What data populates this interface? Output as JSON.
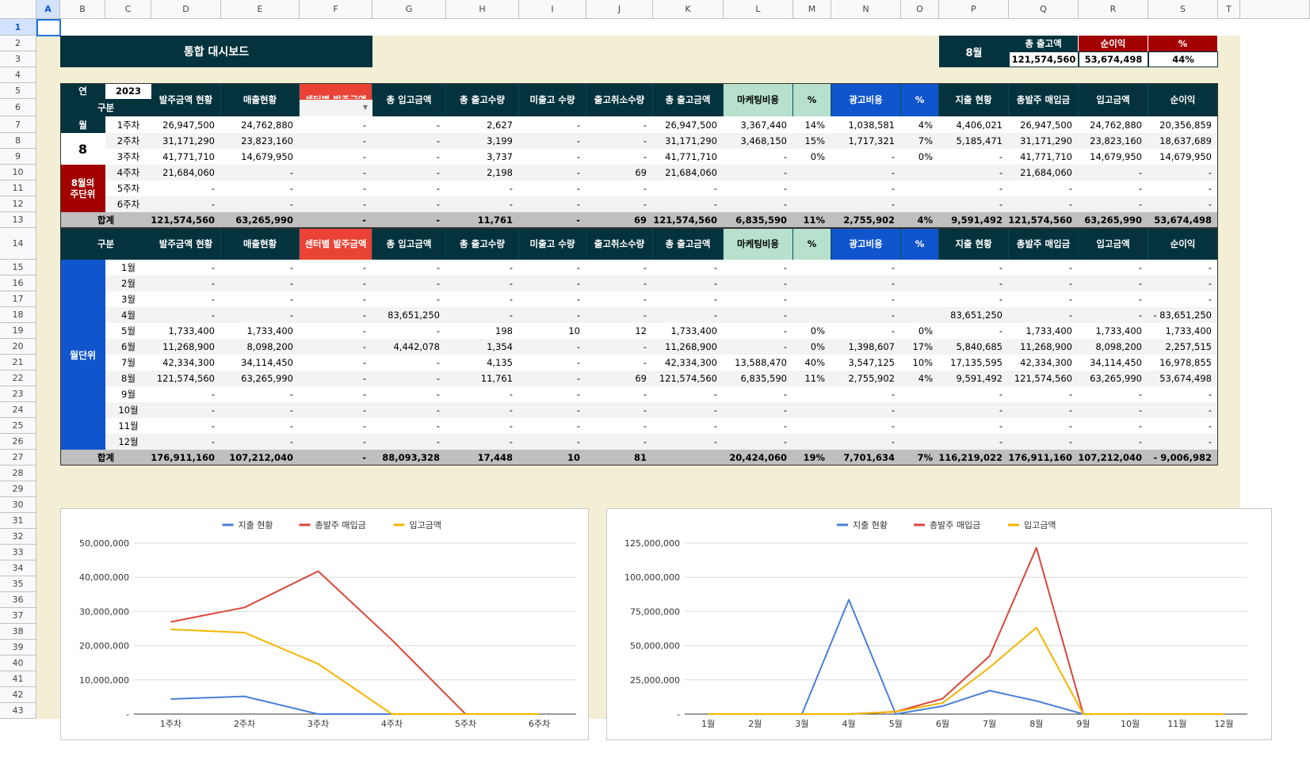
{
  "columns": [
    "A",
    "B",
    "C",
    "D",
    "E",
    "F",
    "G",
    "H",
    "I",
    "J",
    "K",
    "L",
    "M",
    "N",
    "O",
    "P",
    "Q",
    "R",
    "S",
    "T"
  ],
  "rows": [
    "1",
    "2",
    "3",
    "4",
    "5",
    "6",
    "7",
    "8",
    "9",
    "10",
    "11",
    "12",
    "13",
    "14",
    "15",
    "16",
    "17",
    "18",
    "19",
    "20",
    "21",
    "22",
    "23",
    "24",
    "25",
    "26",
    "27",
    "28",
    "29",
    "30",
    "31",
    "32",
    "33",
    "34",
    "35",
    "36",
    "37",
    "38",
    "39",
    "40",
    "41",
    "42",
    "43"
  ],
  "title": "통합 대시보드",
  "summary": {
    "month": "8월",
    "headers": [
      "총 출고액",
      "순이익",
      "%"
    ],
    "values": [
      "121,574,560",
      "53,674,498",
      "44%"
    ]
  },
  "weekly": {
    "year_label": "연",
    "year_value": "2023",
    "gubun_label": "구분",
    "month_label": "월",
    "month_value": "8",
    "side_label": "8월의\n주단위",
    "total_label": "합계",
    "headers": [
      "발주금액 현황",
      "매출현황",
      "센터별 발주금액",
      "총 입고금액",
      "총 출고수량",
      "미출고 수량",
      "출고취소수량",
      "총 출고금액",
      "마케팅비용",
      "%",
      "광고비용",
      "%",
      "지출 현황",
      "총발주 매입금",
      "입고금액",
      "순이익"
    ],
    "rows": [
      {
        "label": "1주차",
        "values": [
          "26,947,500",
          "24,762,880",
          "-",
          "-",
          "2,627",
          "-",
          "-",
          "26,947,500",
          "3,367,440",
          "14%",
          "1,038,581",
          "4%",
          "4,406,021",
          "26,947,500",
          "24,762,880",
          "20,356,859"
        ]
      },
      {
        "label": "2주차",
        "values": [
          "31,171,290",
          "23,823,160",
          "-",
          "-",
          "3,199",
          "-",
          "-",
          "31,171,290",
          "3,468,150",
          "15%",
          "1,717,321",
          "7%",
          "5,185,471",
          "31,171,290",
          "23,823,160",
          "18,637,689"
        ]
      },
      {
        "label": "3주차",
        "values": [
          "41,771,710",
          "14,679,950",
          "-",
          "-",
          "3,737",
          "-",
          "-",
          "41,771,710",
          "-",
          "0%",
          "-",
          "0%",
          "-",
          "41,771,710",
          "14,679,950",
          "14,679,950"
        ]
      },
      {
        "label": "4주차",
        "values": [
          "21,684,060",
          "-",
          "-",
          "-",
          "2,198",
          "-",
          "69",
          "21,684,060",
          "-",
          "",
          "-",
          "",
          "-",
          "21,684,060",
          "-",
          "-"
        ]
      },
      {
        "label": "5주차",
        "values": [
          "-",
          "-",
          "-",
          "-",
          "-",
          "-",
          "-",
          "-",
          "-",
          "",
          "-",
          "",
          "-",
          "-",
          "-",
          "-"
        ]
      },
      {
        "label": "6주차",
        "values": [
          "-",
          "-",
          "-",
          "-",
          "-",
          "-",
          "-",
          "-",
          "-",
          "",
          "-",
          "",
          "-",
          "-",
          "-",
          "-"
        ]
      }
    ],
    "total": [
      "121,574,560",
      "63,265,990",
      "-",
      "-",
      "11,761",
      "-",
      "69",
      "121,574,560",
      "6,835,590",
      "11%",
      "2,755,902",
      "4%",
      "9,591,492",
      "121,574,560",
      "63,265,990",
      "53,674,498"
    ]
  },
  "monthly": {
    "gubun_label": "구분",
    "side_label": "월단위",
    "total_label": "합계",
    "headers": [
      "발주금액 현황",
      "매출현황",
      "센터별 발주금액",
      "총 입고금액",
      "총 출고수량",
      "미출고 수량",
      "출고취소수량",
      "총 출고금액",
      "마케팅비용",
      "%",
      "광고비용",
      "%",
      "지출 현황",
      "총발주 매입금",
      "입고금액",
      "순이익"
    ],
    "rows": [
      {
        "label": "1월",
        "values": [
          "-",
          "-",
          "-",
          "-",
          "-",
          "-",
          "-",
          "-",
          "-",
          "",
          "-",
          "",
          "-",
          "-",
          "-",
          "-"
        ]
      },
      {
        "label": "2월",
        "values": [
          "-",
          "-",
          "-",
          "-",
          "-",
          "-",
          "-",
          "-",
          "-",
          "",
          "-",
          "",
          "-",
          "-",
          "-",
          "-"
        ]
      },
      {
        "label": "3월",
        "values": [
          "-",
          "-",
          "-",
          "-",
          "-",
          "-",
          "-",
          "-",
          "-",
          "",
          "-",
          "",
          "-",
          "-",
          "-",
          "-"
        ]
      },
      {
        "label": "4월",
        "values": [
          "-",
          "-",
          "-",
          "83,651,250",
          "-",
          "-",
          "-",
          "-",
          "-",
          "",
          "-",
          "",
          "83,651,250",
          "-",
          "-",
          "- 83,651,250"
        ]
      },
      {
        "label": "5월",
        "values": [
          "1,733,400",
          "1,733,400",
          "-",
          "-",
          "198",
          "10",
          "12",
          "1,733,400",
          "-",
          "0%",
          "-",
          "0%",
          "-",
          "1,733,400",
          "1,733,400",
          "1,733,400"
        ]
      },
      {
        "label": "6월",
        "values": [
          "11,268,900",
          "8,098,200",
          "-",
          "4,442,078",
          "1,354",
          "-",
          "-",
          "11,268,900",
          "-",
          "0%",
          "1,398,607",
          "17%",
          "5,840,685",
          "11,268,900",
          "8,098,200",
          "2,257,515"
        ]
      },
      {
        "label": "7월",
        "values": [
          "42,334,300",
          "34,114,450",
          "-",
          "-",
          "4,135",
          "-",
          "-",
          "42,334,300",
          "13,588,470",
          "40%",
          "3,547,125",
          "10%",
          "17,135,595",
          "42,334,300",
          "34,114,450",
          "16,978,855"
        ]
      },
      {
        "label": "8월",
        "values": [
          "121,574,560",
          "63,265,990",
          "-",
          "-",
          "11,761",
          "-",
          "69",
          "121,574,560",
          "6,835,590",
          "11%",
          "2,755,902",
          "4%",
          "9,591,492",
          "121,574,560",
          "63,265,990",
          "53,674,498"
        ]
      },
      {
        "label": "9월",
        "values": [
          "-",
          "-",
          "-",
          "-",
          "-",
          "-",
          "-",
          "-",
          "-",
          "",
          "-",
          "",
          "-",
          "-",
          "-",
          "-"
        ]
      },
      {
        "label": "10월",
        "values": [
          "-",
          "-",
          "-",
          "-",
          "-",
          "-",
          "-",
          "-",
          "-",
          "",
          "-",
          "",
          "-",
          "-",
          "-",
          "-"
        ]
      },
      {
        "label": "11월",
        "values": [
          "-",
          "-",
          "-",
          "-",
          "-",
          "-",
          "-",
          "-",
          "-",
          "",
          "-",
          "",
          "-",
          "-",
          "-",
          "-"
        ]
      },
      {
        "label": "12월",
        "values": [
          "-",
          "-",
          "-",
          "-",
          "-",
          "-",
          "-",
          "-",
          "-",
          "",
          "-",
          "",
          "-",
          "-",
          "-",
          "-"
        ]
      }
    ],
    "total": [
      "176,911,160",
      "107,212,040",
      "-",
      "88,093,328",
      "17,448",
      "10",
      "81",
      "",
      "20,424,060",
      "19%",
      "7,701,634",
      "7%",
      "116,219,022",
      "176,911,160",
      "107,212,040",
      "- 9,006,982"
    ]
  },
  "colors": {
    "dark": "#04333e",
    "red": "#ea4335",
    "darkred": "#a30000",
    "mint": "#b7e1cd",
    "blue": "#1155cc",
    "bg": "#f2efd5",
    "series1": "#4a7fd8",
    "series2": "#d9473b",
    "series3": "#f4b400"
  },
  "chart_data": [
    {
      "type": "line",
      "categories": [
        "1주차",
        "2주차",
        "3주차",
        "4주차",
        "5주차",
        "6주차"
      ],
      "series": [
        {
          "name": "지출 현황",
          "values": [
            4406021,
            5185471,
            0,
            0,
            0,
            0
          ]
        },
        {
          "name": "총발주 매입금",
          "values": [
            26947500,
            31171290,
            41771710,
            21684060,
            0,
            0
          ]
        },
        {
          "name": "입고금액",
          "values": [
            24762880,
            23823160,
            14679950,
            0,
            0,
            0
          ]
        }
      ],
      "yticks": [
        "50,000,000",
        "40,000,000",
        "30,000,000",
        "20,000,000",
        "10,000,000",
        "-"
      ],
      "ylim": [
        0,
        50000000
      ],
      "legend": "top",
      "grid": true
    },
    {
      "type": "line",
      "categories": [
        "1월",
        "2월",
        "3월",
        "4월",
        "5월",
        "6월",
        "7월",
        "8월",
        "9월",
        "10월",
        "11월",
        "12월"
      ],
      "series": [
        {
          "name": "지출 현황",
          "values": [
            0,
            0,
            0,
            83651250,
            0,
            5840685,
            17135595,
            9591492,
            0,
            0,
            0,
            0
          ]
        },
        {
          "name": "총발주 매입금",
          "values": [
            0,
            0,
            0,
            0,
            1733400,
            11268900,
            42334300,
            121574560,
            0,
            0,
            0,
            0
          ]
        },
        {
          "name": "입고금액",
          "values": [
            0,
            0,
            0,
            0,
            1733400,
            8098200,
            34114450,
            63265990,
            0,
            0,
            0,
            0
          ]
        }
      ],
      "yticks": [
        "125,000,000",
        "100,000,000",
        "75,000,000",
        "50,000,000",
        "25,000,000",
        "-"
      ],
      "ylim": [
        0,
        125000000
      ],
      "legend": "top",
      "grid": true
    }
  ]
}
